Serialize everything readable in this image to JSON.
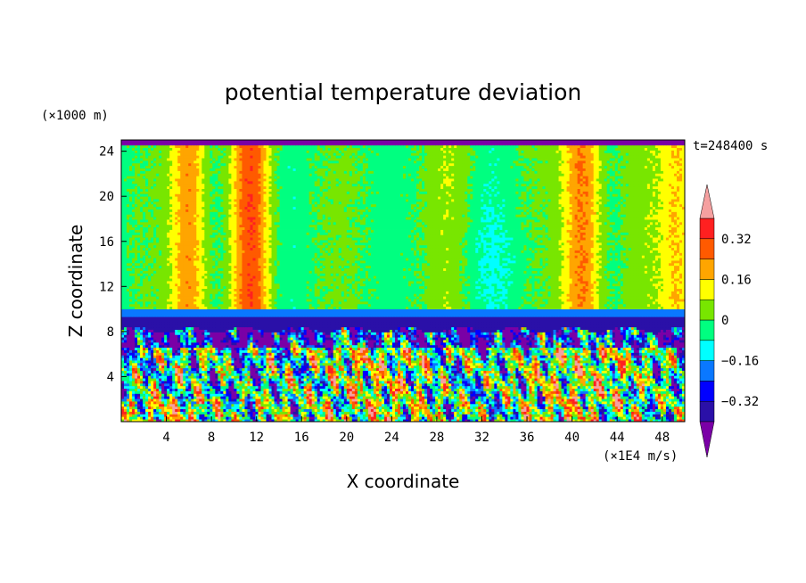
{
  "chart_data": {
    "type": "heatmap",
    "title": "potential temperature deviation",
    "xlabel": "X coordinate",
    "ylabel": "Z coordinate",
    "x_unit": "(×1E4 m/s)",
    "y_unit": "(×1000 m)",
    "time_label": "t=248400 s",
    "xlim": [
      0,
      50
    ],
    "ylim": [
      0,
      25
    ],
    "x_ticks": [
      "4",
      "8",
      "12",
      "16",
      "20",
      "24",
      "28",
      "32",
      "36",
      "40",
      "44",
      "48"
    ],
    "x_tick_values": [
      4,
      8,
      12,
      16,
      20,
      24,
      28,
      32,
      36,
      40,
      44,
      48
    ],
    "y_ticks": [
      "4",
      "8",
      "12",
      "16",
      "20",
      "24"
    ],
    "y_tick_values": [
      4,
      8,
      12,
      16,
      20,
      24
    ],
    "colorbar": {
      "labels": [
        "0.32",
        "0.16",
        "0",
        "−0.16",
        "−0.32"
      ],
      "label_values": [
        0.32,
        0.16,
        0,
        -0.16,
        -0.32
      ],
      "levels": [
        -0.4,
        -0.32,
        -0.24,
        -0.16,
        -0.08,
        0,
        0.08,
        0.16,
        0.24,
        0.32,
        0.4
      ],
      "colors": [
        "#7a00a6",
        "#2a10a8",
        "#0000ff",
        "#0a78ff",
        "#00ffff",
        "#00ff80",
        "#78e600",
        "#ffff00",
        "#ffa500",
        "#ff5a00",
        "#ff2020",
        "#f5a0a0"
      ]
    },
    "field_features": {
      "boundary_layer_top": 9,
      "warm_columns_x": [
        6,
        11.5,
        41,
        49.5
      ],
      "mid_green_columns_x": [
        17,
        25,
        29,
        35,
        45
      ],
      "turbulent_layer_z": [
        0,
        8.5
      ]
    }
  }
}
